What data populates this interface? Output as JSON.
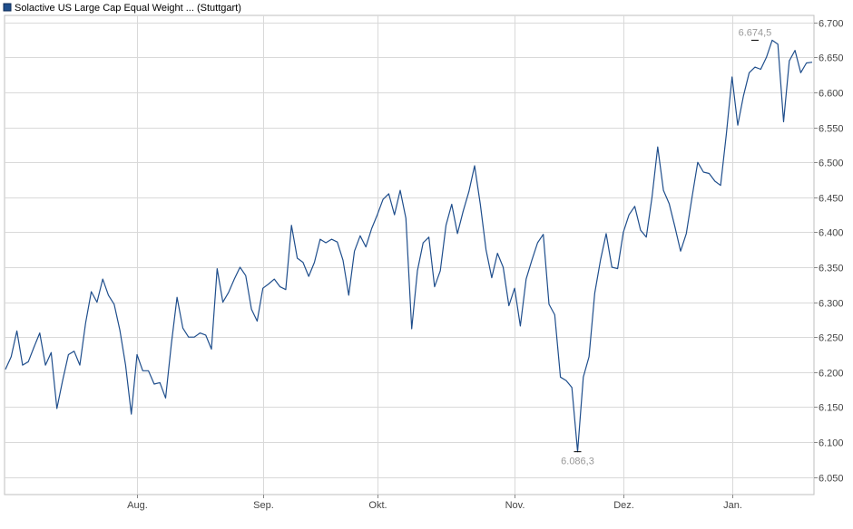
{
  "colors": {
    "line": "#1f4e8c",
    "grid": "#d9d9d9",
    "axis_text": "#444444",
    "annotation_text": "#999999",
    "legend_box": "#1f4e8c"
  },
  "chart_data": {
    "type": "line",
    "legend": "Solactive US Large Cap Equal Weight ... (Stuttgart)",
    "y_axis_side": "right",
    "ylim": [
      6025,
      6710
    ],
    "y_ticks": [
      {
        "value": 6700,
        "label": "6.700"
      },
      {
        "value": 6650,
        "label": "6.650"
      },
      {
        "value": 6600,
        "label": "6.600"
      },
      {
        "value": 6550,
        "label": "6.550"
      },
      {
        "value": 6500,
        "label": "6.500"
      },
      {
        "value": 6450,
        "label": "6.450"
      },
      {
        "value": 6400,
        "label": "6.400"
      },
      {
        "value": 6350,
        "label": "6.350"
      },
      {
        "value": 6300,
        "label": "6.300"
      },
      {
        "value": 6250,
        "label": "6.250"
      },
      {
        "value": 6200,
        "label": "6.200"
      },
      {
        "value": 6150,
        "label": "6.150"
      },
      {
        "value": 6100,
        "label": "6.100"
      },
      {
        "value": 6050,
        "label": "6.050"
      }
    ],
    "x_ticks": [
      {
        "index": 23,
        "label": "Aug."
      },
      {
        "index": 45,
        "label": "Sep."
      },
      {
        "index": 65,
        "label": "Okt."
      },
      {
        "index": 89,
        "label": "Nov."
      },
      {
        "index": 108,
        "label": "Dez."
      },
      {
        "index": 127,
        "label": "Jan."
      }
    ],
    "series": [
      {
        "values": [
          6204,
          6222,
          6259,
          6210,
          6215,
          6236,
          6256,
          6210,
          6228,
          6148,
          6188,
          6225,
          6230,
          6210,
          6270,
          6315,
          6300,
          6333,
          6310,
          6297,
          6260,
          6210,
          6140,
          6225,
          6202,
          6202,
          6183,
          6185,
          6163,
          6240,
          6307,
          6263,
          6250,
          6250,
          6256,
          6253,
          6233,
          6348,
          6300,
          6314,
          6333,
          6350,
          6338,
          6290,
          6273,
          6320,
          6326,
          6333,
          6322,
          6318,
          6410,
          6363,
          6357,
          6337,
          6357,
          6390,
          6385,
          6390,
          6386,
          6360,
          6310,
          6373,
          6395,
          6379,
          6405,
          6425,
          6447,
          6455,
          6425,
          6460,
          6420,
          6262,
          6345,
          6385,
          6393,
          6322,
          6345,
          6410,
          6440,
          6398,
          6430,
          6458,
          6495,
          6440,
          6375,
          6335,
          6370,
          6350,
          6295,
          6320,
          6266,
          6333,
          6360,
          6385,
          6397,
          6297,
          6282,
          6193,
          6188,
          6178,
          6086.3,
          6193,
          6222,
          6313,
          6360,
          6398,
          6350,
          6348,
          6400,
          6425,
          6437,
          6403,
          6393,
          6450,
          6522,
          6460,
          6441,
          6408,
          6373,
          6398,
          6450,
          6500,
          6486,
          6484,
          6473,
          6467,
          6540,
          6622,
          6553,
          6595,
          6628,
          6636,
          6633,
          6650,
          6674.5,
          6669,
          6558,
          6645,
          6660,
          6628,
          6642,
          6643
        ]
      }
    ],
    "annotations": [
      {
        "index": 131,
        "value": 6674.5,
        "label": "6.674,5",
        "position": "above"
      },
      {
        "index": 100,
        "value": 6086.3,
        "label": "6.086,3",
        "position": "below"
      }
    ],
    "grid": true
  }
}
